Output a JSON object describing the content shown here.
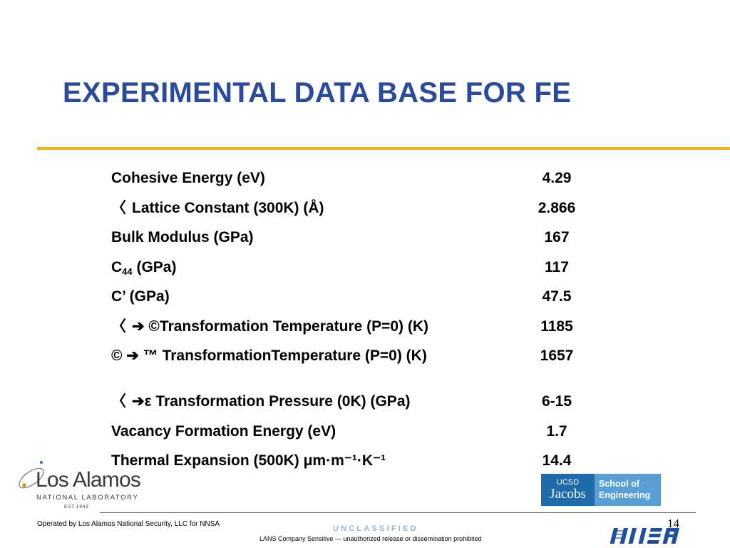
{
  "title": "EXPERIMENTAL DATA BASE FOR FE",
  "properties": [
    {
      "prefix": "",
      "label": "Cohesive Energy (eV)",
      "value": "4.29"
    },
    {
      "prefix": "〈",
      "label": "Lattice Constant (300K) (Å)",
      "value": "2.866"
    },
    {
      "prefix": "",
      "label": "Bulk Modulus (GPa)",
      "value": "167"
    },
    {
      "prefix": "",
      "label": "C",
      "sub": "44",
      "label_after": " (GPa)",
      "value": "117"
    },
    {
      "prefix": "",
      "label": "C’ (GPa)",
      "value": "47.5"
    },
    {
      "prefix": "〈",
      "label": "➔ ©Transformation Temperature (P=0) (K)",
      "value": "1185"
    },
    {
      "prefix": "",
      "label": "© ➔ ™ TransformationTemperature (P=0) (K)",
      "value": "1657"
    },
    {
      "prefix": "〈",
      "label": "➔ε Transformation Pressure (0K) (GPa)",
      "value": "6-15"
    },
    {
      "prefix": "",
      "label": "Vacancy Formation Energy (eV)",
      "value": "1.7"
    },
    {
      "prefix": "",
      "label": "Thermal Expansion (500K) μm·m⁻¹·K⁻¹",
      "value": "14.4"
    }
  ],
  "logos": {
    "lanl_name": "Los Alamos",
    "lanl_sub": "NATIONAL LABORATORY",
    "lanl_est": "EST.1943",
    "ucsd_top": "UCSD",
    "ucsd_name": "Jacobs",
    "ucsd_school_line1": "School of",
    "ucsd_school_line2": "Engineering",
    "nnsa": "NNSA"
  },
  "footer": {
    "operated_by": "Operated by Los Alamos National Security, LLC for NNSA",
    "classification": "UNCLASSIFIED",
    "lans": "LANS Company Sensitive — unauthorized release or dissemination prohibited",
    "page_number": "14"
  },
  "colors": {
    "title": "#2a4a9c",
    "rule": "#f5b21b",
    "ucsd_blue": "#1f6aa8",
    "ucsd_light": "#5a9fd4",
    "unclassified": "#9ab6d4",
    "nnsa_blue": "#1f4e9c"
  }
}
